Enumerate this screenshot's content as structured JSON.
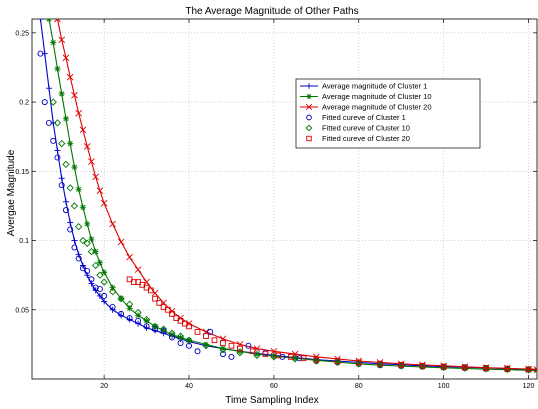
{
  "chart_data": {
    "type": "line",
    "title": "The Average Magnitude of Other Paths",
    "xlabel": "Time Sampling Index",
    "ylabel": "Avergae Magnitude",
    "xlim": [
      3,
      122
    ],
    "ylim": [
      0,
      0.26
    ],
    "xticks": [
      20,
      40,
      60,
      80,
      100,
      120
    ],
    "yticks": [
      0.05,
      0.1,
      0.15,
      0.2,
      0.25
    ],
    "ytick_labels": [
      "0.05",
      "0.1",
      "0.15",
      "0.2",
      "0.25"
    ],
    "grid": true,
    "legend_position": "top-right",
    "series": [
      {
        "name": "Average magnitude of Cluster 1",
        "kind": "line",
        "marker": "plus",
        "color": "#0000cc",
        "x": [
          5,
          6,
          7,
          8,
          9,
          10,
          11,
          12,
          13,
          14,
          15,
          16,
          17,
          18,
          19,
          20,
          22,
          24,
          26,
          28,
          30,
          32,
          34,
          36,
          38,
          40,
          44,
          48,
          52,
          56,
          60,
          65,
          70,
          75,
          80,
          85,
          90,
          95,
          100,
          105,
          110,
          115,
          120,
          122
        ],
        "y": [
          0.26,
          0.235,
          0.21,
          0.185,
          0.165,
          0.145,
          0.128,
          0.113,
          0.1,
          0.09,
          0.082,
          0.075,
          0.069,
          0.064,
          0.06,
          0.056,
          0.05,
          0.046,
          0.043,
          0.04,
          0.037,
          0.035,
          0.033,
          0.031,
          0.029,
          0.027,
          0.024,
          0.022,
          0.02,
          0.0185,
          0.017,
          0.0155,
          0.014,
          0.013,
          0.012,
          0.011,
          0.0102,
          0.0095,
          0.009,
          0.0085,
          0.008,
          0.0075,
          0.007,
          0.0068
        ]
      },
      {
        "name": "Average magnitude of Cluster 10",
        "kind": "line",
        "marker": "star",
        "color": "#007700",
        "x": [
          7,
          8,
          9,
          10,
          11,
          12,
          13,
          14,
          15,
          16,
          17,
          18,
          19,
          20,
          22,
          24,
          26,
          28,
          30,
          32,
          34,
          36,
          38,
          40,
          44,
          48,
          52,
          56,
          60,
          65,
          70,
          75,
          80,
          85,
          90,
          95,
          100,
          105,
          110,
          115,
          120,
          122
        ],
        "y": [
          0.26,
          0.243,
          0.224,
          0.206,
          0.188,
          0.17,
          0.153,
          0.137,
          0.124,
          0.112,
          0.101,
          0.092,
          0.084,
          0.077,
          0.066,
          0.058,
          0.051,
          0.046,
          0.042,
          0.038,
          0.035,
          0.032,
          0.03,
          0.028,
          0.025,
          0.022,
          0.02,
          0.018,
          0.0165,
          0.015,
          0.0135,
          0.0122,
          0.011,
          0.01,
          0.0093,
          0.0087,
          0.0081,
          0.0076,
          0.0071,
          0.0067,
          0.0063,
          0.0062
        ]
      },
      {
        "name": "Average magnitude of Cluster 20",
        "kind": "line",
        "marker": "x",
        "color": "#dd0000",
        "x": [
          9,
          10,
          11,
          12,
          13,
          14,
          15,
          16,
          17,
          18,
          19,
          20,
          22,
          24,
          26,
          28,
          30,
          32,
          34,
          36,
          38,
          40,
          44,
          48,
          52,
          56,
          60,
          65,
          70,
          75,
          80,
          85,
          90,
          95,
          100,
          105,
          110,
          115,
          120,
          122
        ],
        "y": [
          0.26,
          0.245,
          0.232,
          0.218,
          0.205,
          0.192,
          0.18,
          0.168,
          0.157,
          0.146,
          0.136,
          0.127,
          0.112,
          0.099,
          0.088,
          0.079,
          0.07,
          0.062,
          0.055,
          0.049,
          0.044,
          0.04,
          0.034,
          0.029,
          0.025,
          0.022,
          0.02,
          0.018,
          0.016,
          0.0145,
          0.013,
          0.012,
          0.011,
          0.0102,
          0.0095,
          0.0088,
          0.0082,
          0.0077,
          0.0072,
          0.007
        ]
      },
      {
        "name": "Fitted cureve of Cluster 1",
        "kind": "markers",
        "marker": "circle",
        "color": "#0000cc",
        "x": [
          5,
          6,
          7,
          8,
          9,
          10,
          11,
          12,
          13,
          14,
          15,
          16,
          17,
          18,
          19,
          20,
          22,
          24,
          26,
          28,
          30,
          32,
          34,
          36,
          38,
          40,
          42,
          45,
          48,
          50,
          54,
          58,
          62,
          66,
          70,
          75,
          80,
          85,
          90,
          95,
          100,
          105,
          110,
          115,
          120
        ],
        "y": [
          0.235,
          0.2,
          0.185,
          0.172,
          0.16,
          0.14,
          0.122,
          0.108,
          0.095,
          0.087,
          0.08,
          0.078,
          0.072,
          0.066,
          0.065,
          0.06,
          0.052,
          0.047,
          0.044,
          0.042,
          0.038,
          0.036,
          0.035,
          0.03,
          0.026,
          0.024,
          0.02,
          0.034,
          0.018,
          0.016,
          0.024,
          0.019,
          0.016,
          0.015,
          0.013,
          0.012,
          0.011,
          0.01,
          0.0095,
          0.009,
          0.0085,
          0.008,
          0.0075,
          0.007,
          0.0068
        ]
      },
      {
        "name": "Fitted cureve of Cluster 10",
        "kind": "markers",
        "marker": "diamond",
        "color": "#007700",
        "x": [
          8,
          9,
          10,
          11,
          12,
          13,
          14,
          15,
          16,
          17,
          18,
          19,
          20,
          22,
          24,
          26,
          28,
          30,
          32,
          34,
          36,
          38,
          40,
          44,
          48,
          52,
          56,
          60,
          65,
          70,
          75,
          80,
          85,
          90,
          95,
          100,
          105,
          110,
          115,
          120
        ],
        "y": [
          0.2,
          0.185,
          0.17,
          0.155,
          0.138,
          0.125,
          0.11,
          0.1,
          0.098,
          0.092,
          0.082,
          0.075,
          0.07,
          0.063,
          0.058,
          0.054,
          0.048,
          0.043,
          0.038,
          0.036,
          0.033,
          0.031,
          0.028,
          0.024,
          0.021,
          0.019,
          0.017,
          0.016,
          0.0145,
          0.013,
          0.012,
          0.011,
          0.0102,
          0.0095,
          0.009,
          0.0085,
          0.008,
          0.0075,
          0.007,
          0.0068
        ]
      },
      {
        "name": "Fitted cureve of Cluster 20",
        "kind": "markers",
        "marker": "square",
        "color": "#dd0000",
        "x": [
          26,
          27,
          28,
          29,
          30,
          31,
          32,
          33,
          34,
          35,
          36,
          37,
          38,
          39,
          40,
          42,
          44,
          46,
          48,
          50,
          52,
          55,
          58,
          61,
          64,
          67,
          70,
          75,
          80,
          85,
          90,
          95,
          100,
          105,
          110,
          115,
          120
        ],
        "y": [
          0.072,
          0.07,
          0.07,
          0.068,
          0.066,
          0.064,
          0.058,
          0.055,
          0.052,
          0.05,
          0.047,
          0.044,
          0.042,
          0.04,
          0.038,
          0.034,
          0.031,
          0.028,
          0.026,
          0.024,
          0.022,
          0.02,
          0.018,
          0.017,
          0.016,
          0.015,
          0.014,
          0.013,
          0.012,
          0.011,
          0.0102,
          0.0095,
          0.009,
          0.0085,
          0.008,
          0.0075,
          0.007
        ]
      }
    ]
  }
}
